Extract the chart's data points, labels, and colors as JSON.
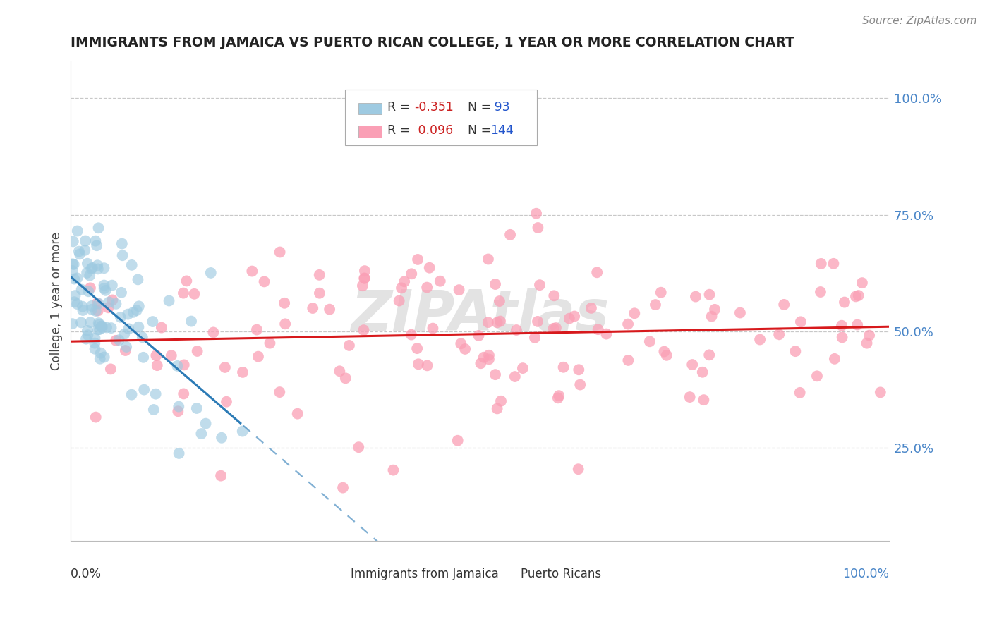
{
  "title": "IMMIGRANTS FROM JAMAICA VS PUERTO RICAN COLLEGE, 1 YEAR OR MORE CORRELATION CHART",
  "source": "Source: ZipAtlas.com",
  "ylabel": "College, 1 year or more",
  "ytick_labels": [
    "100.0%",
    "75.0%",
    "50.0%",
    "25.0%"
  ],
  "ytick_positions": [
    1.0,
    0.75,
    0.5,
    0.25
  ],
  "xlim": [
    0.0,
    1.0
  ],
  "ylim": [
    0.05,
    1.08
  ],
  "legend_blue_label": "Immigrants from Jamaica",
  "legend_pink_label": "Puerto Ricans",
  "R_blue": -0.351,
  "N_blue": 93,
  "R_pink": 0.096,
  "N_pink": 144,
  "blue_color": "#9ecae1",
  "pink_color": "#fa9fb5",
  "blue_line_color": "#2c7bb6",
  "pink_line_color": "#d7191c",
  "watermark_text": "ZIPAtlas",
  "background_color": "#ffffff",
  "grid_color": "#c8c8c8",
  "seed": 7
}
